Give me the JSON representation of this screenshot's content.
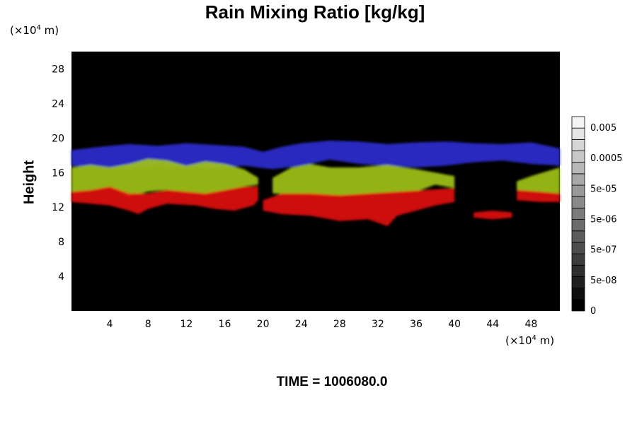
{
  "title": "Rain Mixing Ratio [kg/kg]",
  "y_unit": {
    "pre": "(×10",
    "exp": "4",
    "post": " m)"
  },
  "x_unit": {
    "pre": "(×10",
    "exp": "4",
    "post": " m)"
  },
  "time_label": "TIME = 1006080.0",
  "chart_data": {
    "type": "heatmap",
    "title": "Rain Mixing Ratio [kg/kg]",
    "ylabel": "Height",
    "xlabel": "",
    "xlim": [
      0,
      51
    ],
    "ylim": [
      0,
      30
    ],
    "x_ticks": [
      4,
      8,
      12,
      16,
      20,
      24,
      28,
      32,
      36,
      40,
      44,
      48
    ],
    "y_ticks": [
      4,
      8,
      12,
      16,
      20,
      24,
      28
    ],
    "colorbar": {
      "tick_labels": [
        "0.005",
        "0.0005",
        "5e-05",
        "5e-06",
        "5e-07",
        "5e-08",
        "0"
      ],
      "levels": 17,
      "color_low": "#000000",
      "color_high": "#ffffff"
    },
    "layers": [
      {
        "name": "blue-top",
        "color": "#2a2ecf",
        "bottom": [
          [
            0,
            16.8
          ],
          [
            3,
            16.6
          ],
          [
            6,
            16.5
          ],
          [
            9,
            16.8
          ],
          [
            12,
            16.6
          ],
          [
            15,
            16.5
          ],
          [
            18,
            16.8
          ],
          [
            21,
            16.4
          ],
          [
            24,
            16.8
          ],
          [
            27,
            17.5
          ],
          [
            30,
            17.0
          ],
          [
            33,
            16.8
          ],
          [
            36,
            16.6
          ],
          [
            39,
            16.8
          ],
          [
            42,
            17.2
          ],
          [
            45,
            17.4
          ],
          [
            48,
            17.0
          ],
          [
            51,
            16.8
          ]
        ],
        "top": [
          [
            0,
            18.6
          ],
          [
            3,
            19.0
          ],
          [
            6,
            19.3
          ],
          [
            9,
            19.1
          ],
          [
            12,
            19.4
          ],
          [
            15,
            19.2
          ],
          [
            18,
            19.0
          ],
          [
            20,
            18.4
          ],
          [
            22,
            19.0
          ],
          [
            24,
            19.4
          ],
          [
            27,
            19.7
          ],
          [
            30,
            19.6
          ],
          [
            33,
            19.3
          ],
          [
            36,
            19.5
          ],
          [
            39,
            19.6
          ],
          [
            42,
            19.4
          ],
          [
            45,
            19.3
          ],
          [
            48,
            19.5
          ],
          [
            51,
            18.8
          ]
        ]
      },
      {
        "name": "yellow-green-band",
        "color": "#9fc21a",
        "segments": [
          {
            "bottom": [
              [
                0,
                13.6
              ],
              [
                2,
                13.8
              ],
              [
                4,
                14.2
              ],
              [
                6,
                13.2
              ],
              [
                8,
                13.8
              ],
              [
                10,
                14.0
              ],
              [
                12,
                13.6
              ],
              [
                14,
                13.4
              ],
              [
                16,
                13.8
              ],
              [
                18,
                14.4
              ],
              [
                19.5,
                14.6
              ]
            ],
            "top": [
              [
                0,
                16.6
              ],
              [
                2,
                16.9
              ],
              [
                4,
                16.6
              ],
              [
                6,
                17.0
              ],
              [
                8,
                17.6
              ],
              [
                10,
                17.4
              ],
              [
                12,
                16.8
              ],
              [
                14,
                17.3
              ],
              [
                16,
                17.0
              ],
              [
                18,
                16.4
              ],
              [
                19.5,
                15.4
              ]
            ]
          },
          {
            "bottom": [
              [
                21,
                13.6
              ],
              [
                24,
                13.4
              ],
              [
                27,
                13.2
              ],
              [
                30,
                13.4
              ],
              [
                33,
                13.6
              ],
              [
                36,
                13.8
              ],
              [
                38,
                14.6
              ],
              [
                40,
                14.2
              ]
            ],
            "top": [
              [
                21,
                15.4
              ],
              [
                23,
                16.6
              ],
              [
                25,
                17.0
              ],
              [
                27,
                16.6
              ],
              [
                30,
                16.6
              ],
              [
                33,
                16.9
              ],
              [
                36,
                16.4
              ],
              [
                38,
                16.0
              ],
              [
                40,
                15.6
              ]
            ]
          },
          {
            "bottom": [
              [
                46.5,
                14.0
              ],
              [
                48,
                13.8
              ],
              [
                51,
                13.6
              ]
            ],
            "top": [
              [
                46.5,
                15.0
              ],
              [
                48,
                15.6
              ],
              [
                51,
                16.6
              ]
            ]
          }
        ]
      },
      {
        "name": "red-lower",
        "color": "#e01010",
        "segments": [
          {
            "bottom": [
              [
                0,
                12.6
              ],
              [
                2,
                12.4
              ],
              [
                4,
                12.2
              ],
              [
                6,
                11.6
              ],
              [
                7,
                11.2
              ],
              [
                8,
                11.8
              ],
              [
                10,
                12.4
              ],
              [
                13,
                12.2
              ],
              [
                15,
                11.8
              ],
              [
                17,
                11.6
              ],
              [
                19,
                12.2
              ],
              [
                19.5,
                12.8
              ]
            ],
            "top": [
              [
                0,
                13.8
              ],
              [
                2,
                14.0
              ],
              [
                4,
                14.4
              ],
              [
                6,
                13.6
              ],
              [
                8,
                13.6
              ],
              [
                10,
                14.0
              ],
              [
                12,
                13.8
              ],
              [
                14,
                13.6
              ],
              [
                16,
                14.0
              ],
              [
                18,
                14.4
              ],
              [
                19.5,
                14.4
              ]
            ]
          },
          {
            "bottom": [
              [
                20,
                11.6
              ],
              [
                22,
                11.2
              ],
              [
                25,
                11.0
              ],
              [
                28,
                10.4
              ],
              [
                31,
                10.6
              ],
              [
                33,
                9.8
              ],
              [
                34,
                11.0
              ],
              [
                36,
                11.6
              ],
              [
                38,
                12.2
              ],
              [
                40,
                12.6
              ]
            ],
            "top": [
              [
                20,
                12.8
              ],
              [
                22,
                13.6
              ],
              [
                25,
                13.6
              ],
              [
                28,
                13.4
              ],
              [
                31,
                13.6
              ],
              [
                34,
                13.8
              ],
              [
                37,
                14.0
              ],
              [
                40,
                14.2
              ]
            ]
          },
          {
            "bottom": [
              [
                42,
                10.8
              ],
              [
                44,
                10.6
              ],
              [
                46,
                10.8
              ]
            ],
            "top": [
              [
                42,
                11.4
              ],
              [
                44,
                11.6
              ],
              [
                46,
                11.4
              ]
            ]
          },
          {
            "bottom": [
              [
                46.5,
                12.8
              ],
              [
                49,
                12.6
              ],
              [
                51,
                12.6
              ]
            ],
            "top": [
              [
                46.5,
                14.0
              ],
              [
                49,
                13.8
              ],
              [
                51,
                13.6
              ]
            ]
          }
        ]
      }
    ]
  }
}
